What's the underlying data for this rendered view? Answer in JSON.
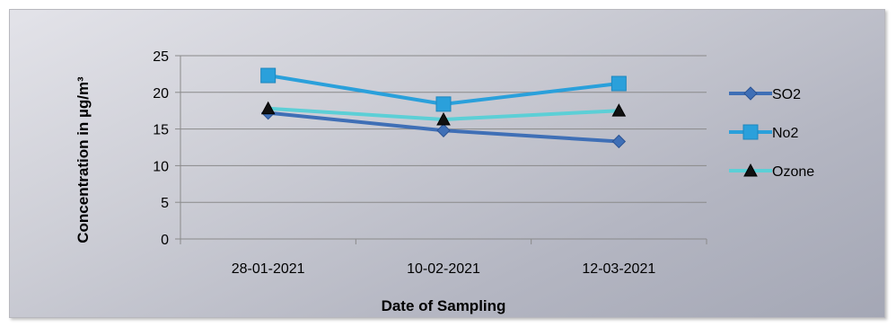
{
  "chart_data": {
    "type": "line",
    "title": "",
    "xlabel": "Date of Sampling",
    "ylabel": "Concentration in µg/m³",
    "categories": [
      "28-01-2021",
      "10-02-2021",
      "12-03-2021"
    ],
    "ylim": [
      0,
      25
    ],
    "yticks": [
      0,
      5,
      10,
      15,
      20,
      25
    ],
    "grid": true,
    "legend": "right",
    "series": [
      {
        "name": "SO2",
        "values": [
          17.2,
          14.8,
          13.3
        ],
        "color": "#3f6fb6",
        "marker": "diamond"
      },
      {
        "name": "No2",
        "values": [
          22.3,
          18.4,
          21.2
        ],
        "color": "#2aa0db",
        "marker": "square"
      },
      {
        "name": "Ozone",
        "values": [
          17.8,
          16.3,
          17.5
        ],
        "color": "#5ccfd6",
        "marker": "triangle"
      }
    ]
  }
}
